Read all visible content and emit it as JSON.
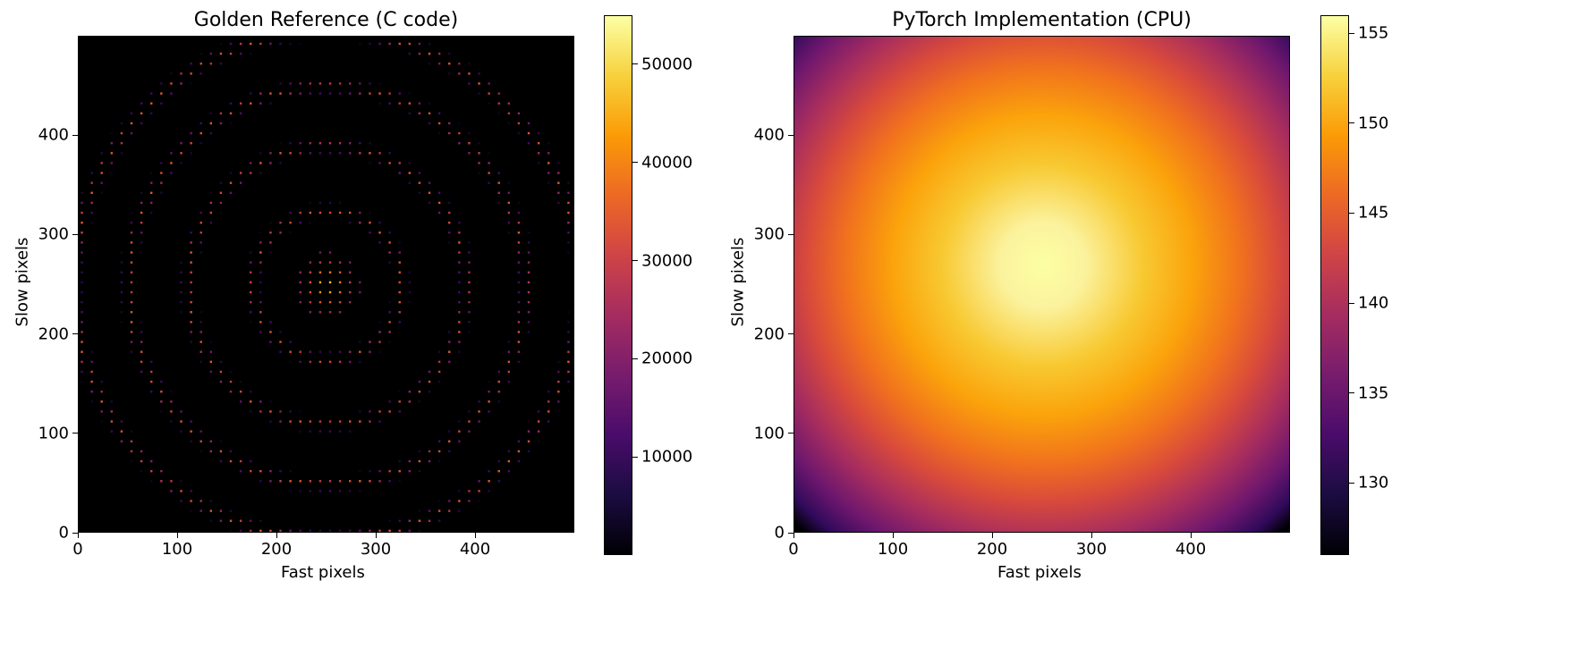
{
  "chart_data": [
    {
      "type": "heatmap",
      "title": "Golden Reference (C code)",
      "xlabel": "Fast pixels",
      "ylabel": "Slow pixels",
      "x_ticks": [
        0,
        100,
        200,
        300,
        400
      ],
      "y_ticks": [
        0,
        100,
        200,
        300,
        400
      ],
      "xlim": [
        0,
        500
      ],
      "ylim": [
        0,
        500
      ],
      "colormap": "inferno",
      "colorbar": {
        "min": 0,
        "max": 55000,
        "ticks": [
          10000,
          20000,
          30000,
          40000,
          50000
        ]
      },
      "pattern": "Bragg spots on concentric rings around center (250,250)",
      "center": [
        250,
        250
      ],
      "ring_radii": [
        75,
        140,
        200,
        255
      ],
      "grid_spacing": 10
    },
    {
      "type": "heatmap",
      "title": "PyTorch Implementation (CPU)",
      "xlabel": "Fast pixels",
      "ylabel": "Slow pixels",
      "x_ticks": [
        0,
        100,
        200,
        300,
        400
      ],
      "y_ticks": [
        0,
        100,
        200,
        300,
        400
      ],
      "xlim": [
        0,
        500
      ],
      "ylim": [
        0,
        500
      ],
      "colormap": "inferno",
      "colorbar": {
        "min": 126,
        "max": 156,
        "ticks": [
          130,
          135,
          140,
          145,
          150,
          155
        ]
      },
      "pattern": "smooth radial falloff from center (250,250)"
    }
  ]
}
